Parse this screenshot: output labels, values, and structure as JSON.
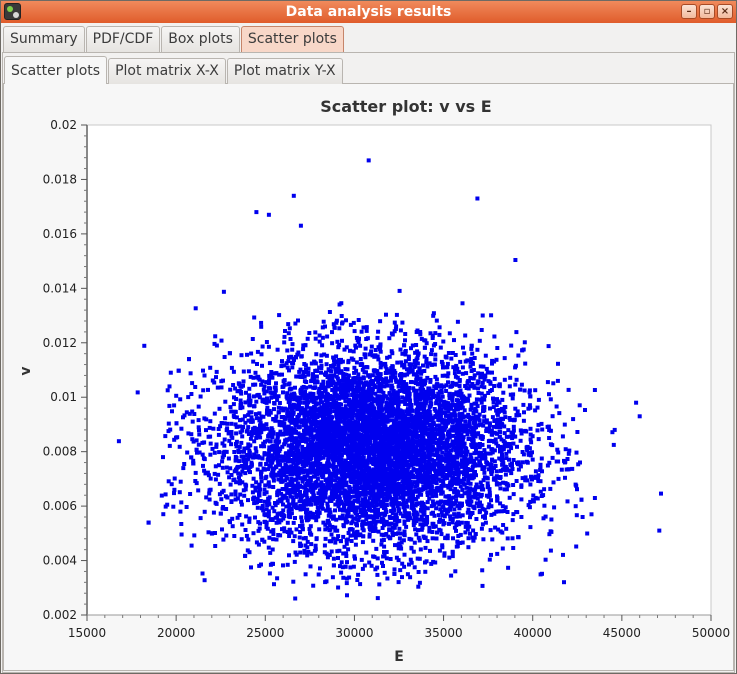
{
  "window": {
    "title": "Data analysis results",
    "icon": "app-logo-icon",
    "controls": [
      "minimize-icon",
      "maximize-icon",
      "close-icon"
    ]
  },
  "top_tabs": [
    {
      "label": "Summary",
      "active": false
    },
    {
      "label": "PDF/CDF",
      "active": false
    },
    {
      "label": "Box plots",
      "active": false
    },
    {
      "label": "Scatter plots",
      "active": true
    }
  ],
  "sub_tabs": [
    {
      "label": "Scatter plots",
      "active": true
    },
    {
      "label": "Plot matrix X-X",
      "active": false
    },
    {
      "label": "Plot matrix Y-X",
      "active": false
    }
  ],
  "colors": {
    "titlebar": "#e86a3a",
    "points": "#0000ee",
    "plot_background": "#ffffff"
  },
  "chart_data": {
    "type": "scatter",
    "title": "Scatter plot: v vs E",
    "xlabel": "E",
    "ylabel": "v",
    "xlim": [
      15000,
      50000
    ],
    "ylim": [
      0.002,
      0.02
    ],
    "x_ticks": [
      "15000",
      "20000",
      "25000",
      "30000",
      "35000",
      "40000",
      "45000",
      "50000"
    ],
    "y_ticks": [
      "0.002",
      "0.004",
      "0.006",
      "0.008",
      "0.01",
      "0.012",
      "0.014",
      "0.016",
      "0.018",
      "0.02"
    ],
    "grid": false,
    "series": [
      {
        "color": "#0000ee",
        "distribution": {
          "count": 7000,
          "x_mean": 31000,
          "x_std": 4200,
          "y_mean": 0.0081,
          "y_std": 0.0018
        },
        "outliers": [
          [
            30800,
            0.0187
          ],
          [
            36900,
            0.0173
          ],
          [
            26600,
            0.0174
          ],
          [
            47100,
            0.0051
          ],
          [
            46000,
            0.0093
          ],
          [
            45800,
            0.0098
          ],
          [
            19700,
            0.0109
          ],
          [
            19900,
            0.0066
          ],
          [
            24500,
            0.0168
          ],
          [
            25200,
            0.0167
          ],
          [
            27000,
            0.0163
          ],
          [
            33000,
            0.0035
          ],
          [
            44600,
            0.0088
          ],
          [
            43300,
            0.0057
          ],
          [
            42800,
            0.0056
          ]
        ]
      }
    ]
  }
}
